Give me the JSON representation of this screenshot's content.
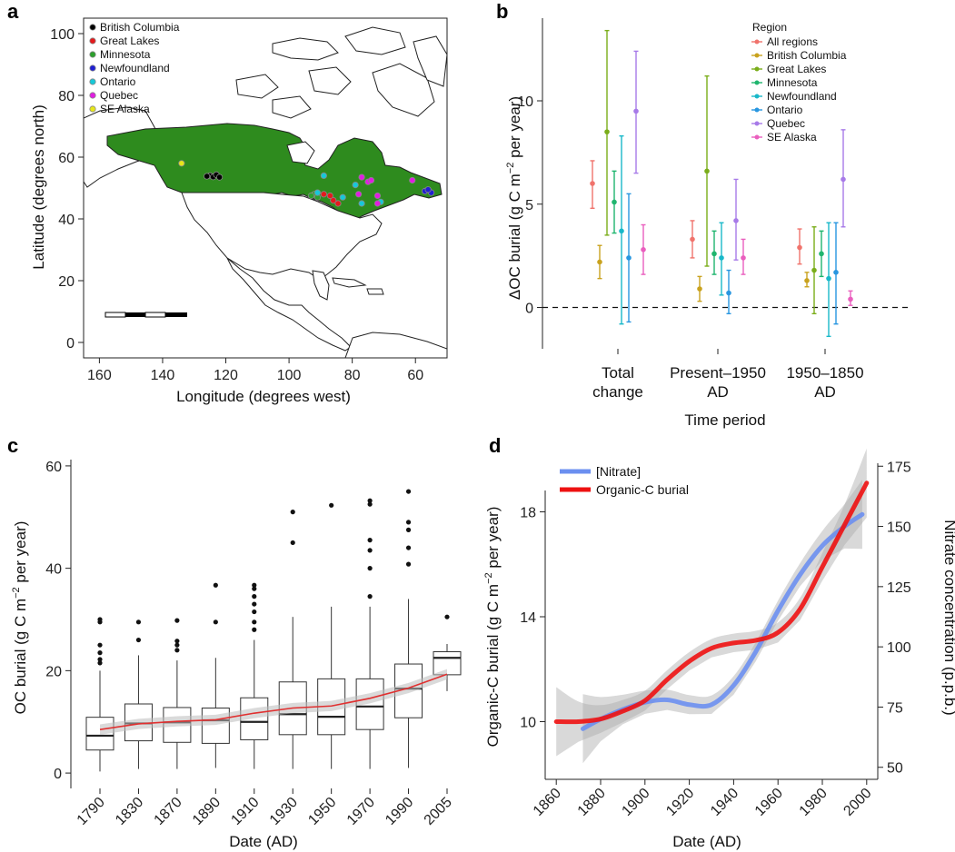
{
  "panels": {
    "a": "a",
    "b": "b",
    "c": "c",
    "d": "d"
  },
  "chart_data": [
    {
      "panel": "a",
      "type": "scatter",
      "xlabel": "Longitude (degrees west)",
      "ylabel": "Latitude (degrees north)",
      "xlim": [
        165,
        50
      ],
      "ylim": [
        -5,
        105
      ],
      "xticks": [
        160,
        140,
        120,
        100,
        80,
        60
      ],
      "yticks": [
        0,
        20,
        40,
        60,
        80,
        100
      ],
      "legend_position": "top-left",
      "series": [
        {
          "name": "British Columbia",
          "color": "#000000",
          "points": [
            [
              125,
              54
            ],
            [
              124,
              53.6
            ],
            [
              123,
              54.3
            ],
            [
              126,
              53.8
            ],
            [
              122,
              53.5
            ]
          ]
        },
        {
          "name": "Great Lakes",
          "color": "#e41a1c",
          "points": [
            [
              89,
              48
            ],
            [
              86,
              46
            ],
            [
              87,
              47.5
            ],
            [
              84.5,
              45
            ]
          ]
        },
        {
          "name": "Minnesota",
          "color": "#2ca02c",
          "points": [
            [
              92,
              48
            ],
            [
              93,
              47.5
            ],
            [
              91,
              47
            ]
          ]
        },
        {
          "name": "Newfoundland",
          "color": "#1f1fd2",
          "points": [
            [
              57,
              49
            ],
            [
              55,
              48.5
            ],
            [
              56,
              49.5
            ]
          ]
        },
        {
          "name": "Ontario",
          "color": "#17c8d8",
          "points": [
            [
              89,
              54
            ],
            [
              91,
              48.5
            ],
            [
              83,
              47
            ],
            [
              77,
              45
            ],
            [
              71,
              45.5
            ],
            [
              79,
              51
            ]
          ]
        },
        {
          "name": "Quebec",
          "color": "#e01ee0",
          "points": [
            [
              77,
              53.5
            ],
            [
              75,
              52
            ],
            [
              78,
              48
            ],
            [
              72,
              47.5
            ],
            [
              61,
              52.5
            ],
            [
              72,
              45
            ],
            [
              74,
              52.5
            ]
          ]
        },
        {
          "name": "SE Alaska",
          "color": "#e6e61a",
          "points": [
            [
              134,
              58
            ]
          ]
        }
      ]
    },
    {
      "panel": "b",
      "type": "scatter",
      "xlabel": "Time period",
      "ylabel": "ΔOC burial (g C m−2 per year)",
      "categories": [
        [
          "Total",
          "change"
        ],
        [
          "Present–1950",
          "AD"
        ],
        [
          "1950–1850",
          "AD"
        ]
      ],
      "ylim": [
        -2,
        14
      ],
      "yticks": [
        0,
        5,
        10
      ],
      "reference_line": 0,
      "legend_title": "Region",
      "legend_position": "top-right",
      "series": [
        {
          "name": "All regions",
          "color": "#f0736c",
          "points": [
            {
              "mean": 6.0,
              "lo": 4.8,
              "hi": 7.1
            },
            {
              "mean": 3.3,
              "lo": 2.4,
              "hi": 4.2
            },
            {
              "mean": 2.9,
              "lo": 2.1,
              "hi": 3.8
            }
          ]
        },
        {
          "name": "British Columbia",
          "color": "#c9a21e",
          "points": [
            {
              "mean": 2.2,
              "lo": 1.4,
              "hi": 3.0
            },
            {
              "mean": 0.9,
              "lo": 0.3,
              "hi": 1.5
            },
            {
              "mean": 1.3,
              "lo": 1.0,
              "hi": 1.7
            }
          ]
        },
        {
          "name": "Great Lakes",
          "color": "#7aad1a",
          "points": [
            {
              "mean": 8.5,
              "lo": 3.5,
              "hi": 13.4
            },
            {
              "mean": 6.6,
              "lo": 2.0,
              "hi": 11.2
            },
            {
              "mean": 1.8,
              "lo": -0.3,
              "hi": 3.9
            }
          ]
        },
        {
          "name": "Minnesota",
          "color": "#1fb56e",
          "points": [
            {
              "mean": 5.1,
              "lo": 3.6,
              "hi": 6.6
            },
            {
              "mean": 2.6,
              "lo": 1.6,
              "hi": 3.7
            },
            {
              "mean": 2.6,
              "lo": 1.5,
              "hi": 3.7
            }
          ]
        },
        {
          "name": "Newfoundland",
          "color": "#19b8c9",
          "points": [
            {
              "mean": 3.7,
              "lo": -0.8,
              "hi": 8.3
            },
            {
              "mean": 2.4,
              "lo": 0.6,
              "hi": 4.1
            },
            {
              "mean": 1.4,
              "lo": -1.4,
              "hi": 4.1
            }
          ]
        },
        {
          "name": "Ontario",
          "color": "#2896e0",
          "points": [
            {
              "mean": 2.4,
              "lo": -0.7,
              "hi": 5.5
            },
            {
              "mean": 0.7,
              "lo": -0.3,
              "hi": 1.8
            },
            {
              "mean": 1.7,
              "lo": -0.8,
              "hi": 4.1
            }
          ]
        },
        {
          "name": "Quebec",
          "color": "#a77ae8",
          "points": [
            {
              "mean": 9.5,
              "lo": 6.5,
              "hi": 12.4
            },
            {
              "mean": 4.2,
              "lo": 2.3,
              "hi": 6.2
            },
            {
              "mean": 6.2,
              "lo": 3.9,
              "hi": 8.6
            }
          ]
        },
        {
          "name": "SE Alaska",
          "color": "#ea5fbe",
          "points": [
            {
              "mean": 2.8,
              "lo": 1.6,
              "hi": 4.0
            },
            {
              "mean": 2.4,
              "lo": 1.6,
              "hi": 3.3
            },
            {
              "mean": 0.4,
              "lo": 0.1,
              "hi": 0.8
            }
          ]
        }
      ]
    },
    {
      "panel": "c",
      "type": "box",
      "xlabel": "Date (AD)",
      "ylabel": "OC burial (g C m−2 per year)",
      "ylim": [
        -3,
        63
      ],
      "yticks": [
        0,
        20,
        40,
        60
      ],
      "categories": [
        "1790",
        "1830",
        "1870",
        "1890",
        "1910",
        "1930",
        "1950",
        "1970",
        "1990",
        "2005"
      ],
      "boxes": [
        {
          "q1": 4.5,
          "median": 7.3,
          "q3": 10.9,
          "whisker_lo": 0.3,
          "whisker_hi": 20.0,
          "outliers": [
            21.5,
            22.2,
            23.5,
            25.0,
            29.5,
            30.0
          ]
        },
        {
          "q1": 6.3,
          "median": 9.7,
          "q3": 13.5,
          "whisker_lo": 0.8,
          "whisker_hi": 23.0,
          "outliers": [
            26.0,
            29.5
          ]
        },
        {
          "q1": 6.0,
          "median": 9.9,
          "q3": 12.8,
          "whisker_lo": 0.8,
          "whisker_hi": 22.0,
          "outliers": [
            24.0,
            25.0,
            25.8,
            29.8
          ]
        },
        {
          "q1": 5.8,
          "median": 10.3,
          "q3": 12.7,
          "whisker_lo": 1.0,
          "whisker_hi": 22.5,
          "outliers": [
            29.5,
            36.7
          ]
        },
        {
          "q1": 6.5,
          "median": 10.0,
          "q3": 14.7,
          "whisker_lo": 0.8,
          "whisker_hi": 26.0,
          "outliers": [
            28.0,
            29.5,
            31.5,
            33.0,
            34.5,
            36.0,
            36.7
          ]
        },
        {
          "q1": 7.5,
          "median": 11.5,
          "q3": 17.8,
          "whisker_lo": 0.8,
          "whisker_hi": 30.5,
          "outliers": [
            45.0,
            51.0
          ]
        },
        {
          "q1": 7.5,
          "median": 11.0,
          "q3": 18.4,
          "whisker_lo": 0.8,
          "whisker_hi": 32.5,
          "outliers": [
            52.3
          ]
        },
        {
          "q1": 8.5,
          "median": 13.0,
          "q3": 18.4,
          "whisker_lo": 0.8,
          "whisker_hi": 32.5,
          "outliers": [
            34.5,
            40.0,
            43.5,
            45.5,
            52.5,
            53.2
          ]
        },
        {
          "q1": 10.8,
          "median": 16.5,
          "q3": 21.3,
          "whisker_lo": 1.0,
          "whisker_hi": 34.0,
          "outliers": [
            40.8,
            44.0,
            47.5,
            49.0,
            55.0
          ]
        },
        {
          "q1": 19.2,
          "median": 22.5,
          "q3": 23.7,
          "whisker_lo": 16.0,
          "whisker_hi": 25.2,
          "outliers": [
            30.5
          ]
        }
      ],
      "trend": [
        8.5,
        9.6,
        10.1,
        10.4,
        11.7,
        12.7,
        13.1,
        14.6,
        16.6,
        19.3
      ],
      "trend_color": "#e03030"
    },
    {
      "panel": "d",
      "type": "line",
      "xlabel": "Date (AD)",
      "ylabel": "Organic-C burial (g C m−2 per year)",
      "y2label": "Nitrate concentration (p.p.b.)",
      "xlim": [
        1855,
        2005
      ],
      "xticks": [
        1860,
        1880,
        1900,
        1920,
        1940,
        1960,
        1980,
        2000
      ],
      "ylim": [
        7.8,
        20.2
      ],
      "yticks": [
        10,
        14,
        18
      ],
      "y2lim": [
        45,
        180
      ],
      "y2ticks": [
        50,
        75,
        100,
        125,
        150,
        175
      ],
      "legend_position": "top-left",
      "series": [
        {
          "name": "[Nitrate]",
          "color": "#6b8ff0",
          "axis": "right",
          "x": [
            1872,
            1880,
            1890,
            1900,
            1910,
            1920,
            1930,
            1940,
            1950,
            1960,
            1970,
            1980,
            1990,
            1998
          ],
          "y": [
            66,
            70,
            74,
            77,
            78,
            76,
            76,
            84,
            98,
            115,
            130,
            142,
            150,
            155
          ]
        },
        {
          "name": "Organic-C burial",
          "color": "#ee1111",
          "axis": "left",
          "x": [
            1860,
            1870,
            1880,
            1890,
            1900,
            1910,
            1920,
            1930,
            1940,
            1950,
            1960,
            1970,
            1980,
            1990,
            2000
          ],
          "y": [
            10.0,
            10.0,
            10.1,
            10.4,
            10.8,
            11.6,
            12.3,
            12.8,
            13.0,
            13.1,
            13.4,
            14.3,
            15.9,
            17.5,
            19.1
          ]
        }
      ]
    }
  ]
}
